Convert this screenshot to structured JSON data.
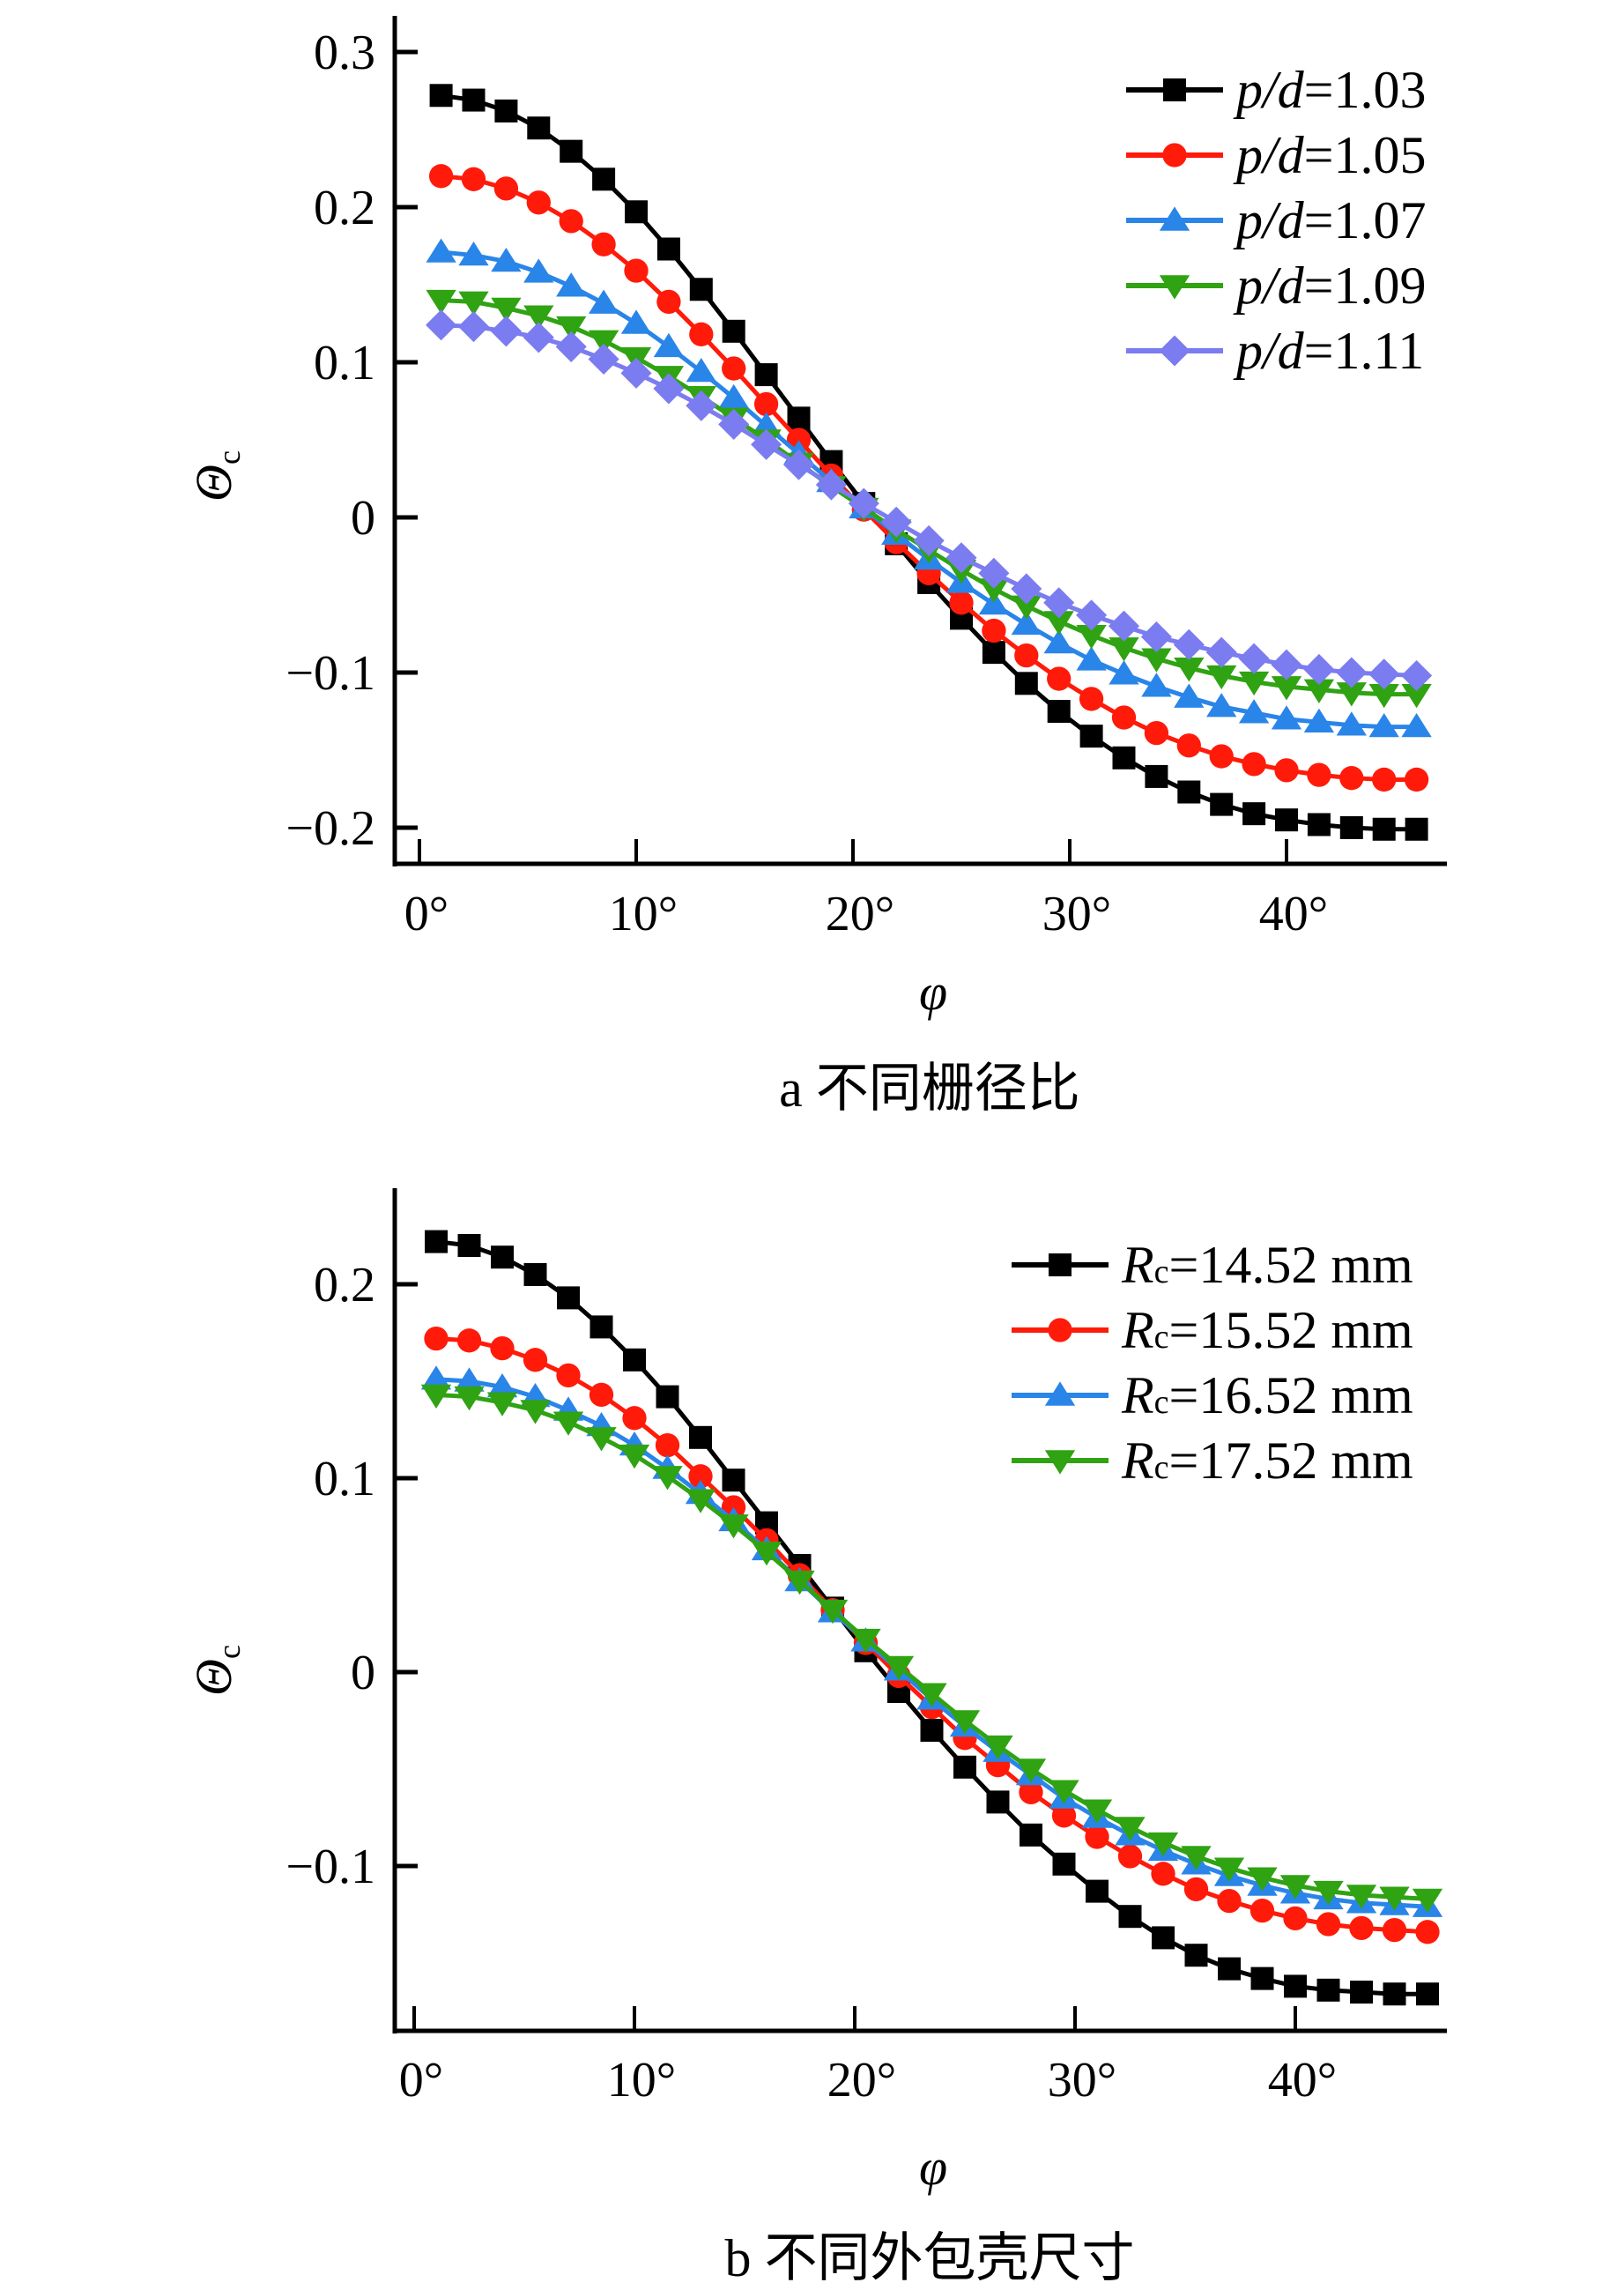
{
  "chart_data": [
    {
      "id": "a",
      "type": "line",
      "caption": "a  不同栅径比",
      "xlabel": "φ",
      "ylabel": "Θ",
      "ylabel_sub": "c",
      "xlim": [
        0,
        47
      ],
      "ylim": [
        -0.22,
        0.32
      ],
      "xticks": [
        0,
        10,
        20,
        30,
        40
      ],
      "xtick_labels": [
        "0°",
        "10°",
        "20°",
        "30°",
        "40°"
      ],
      "yticks": [
        0.3,
        0.2,
        0.1,
        0,
        -0.1,
        -0.2
      ],
      "ytick_labels": [
        "0.3",
        "0.2",
        "0.1",
        "0",
        "−0.1",
        "−0.2"
      ],
      "grid": false,
      "legend_position": "top-right",
      "x_start": 1.0,
      "x_step": 1.5,
      "n_points": 31,
      "series": [
        {
          "name_prefix_italic": "p/d",
          "name_suffix": "=1.03",
          "color": "#000000",
          "marker": "square",
          "values": [
            0.272,
            0.269,
            0.262,
            0.251,
            0.236,
            0.218,
            0.197,
            0.173,
            0.147,
            0.12,
            0.092,
            0.064,
            0.036,
            0.009,
            -0.017,
            -0.042,
            -0.065,
            -0.087,
            -0.107,
            -0.125,
            -0.141,
            -0.155,
            -0.167,
            -0.177,
            -0.185,
            -0.191,
            -0.195,
            -0.198,
            -0.2,
            -0.201,
            -0.201
          ]
        },
        {
          "name_prefix_italic": "p/d",
          "name_suffix": "=1.05",
          "color": "#ff1a0a",
          "marker": "circle",
          "values": [
            0.22,
            0.218,
            0.212,
            0.203,
            0.191,
            0.176,
            0.159,
            0.139,
            0.118,
            0.096,
            0.073,
            0.05,
            0.027,
            0.005,
            -0.016,
            -0.036,
            -0.055,
            -0.073,
            -0.089,
            -0.104,
            -0.117,
            -0.129,
            -0.139,
            -0.147,
            -0.154,
            -0.159,
            -0.163,
            -0.166,
            -0.168,
            -0.169,
            -0.169
          ]
        },
        {
          "name_prefix_italic": "p/d",
          "name_suffix": "=1.07",
          "color": "#2a85e8",
          "marker": "triangle-up",
          "values": [
            0.171,
            0.169,
            0.165,
            0.158,
            0.149,
            0.138,
            0.125,
            0.11,
            0.094,
            0.077,
            0.059,
            0.041,
            0.023,
            0.006,
            -0.011,
            -0.027,
            -0.042,
            -0.056,
            -0.069,
            -0.081,
            -0.092,
            -0.101,
            -0.109,
            -0.116,
            -0.122,
            -0.126,
            -0.13,
            -0.132,
            -0.134,
            -0.135,
            -0.135
          ]
        },
        {
          "name_prefix_italic": "p/d",
          "name_suffix": "=1.09",
          "color": "#2fa312",
          "marker": "triangle-down",
          "values": [
            0.14,
            0.139,
            0.135,
            0.13,
            0.123,
            0.114,
            0.103,
            0.091,
            0.078,
            0.064,
            0.05,
            0.035,
            0.02,
            0.006,
            -0.008,
            -0.021,
            -0.034,
            -0.046,
            -0.057,
            -0.067,
            -0.076,
            -0.084,
            -0.091,
            -0.097,
            -0.102,
            -0.106,
            -0.109,
            -0.111,
            -0.113,
            -0.114,
            -0.114
          ]
        },
        {
          "name_prefix_italic": "p/d",
          "name_suffix": "=1.11",
          "color": "#7b7cf0",
          "marker": "diamond",
          "values": [
            0.124,
            0.123,
            0.12,
            0.116,
            0.11,
            0.102,
            0.093,
            0.083,
            0.072,
            0.06,
            0.047,
            0.034,
            0.021,
            0.009,
            -0.003,
            -0.015,
            -0.026,
            -0.036,
            -0.046,
            -0.055,
            -0.063,
            -0.07,
            -0.077,
            -0.082,
            -0.087,
            -0.091,
            -0.095,
            -0.098,
            -0.1,
            -0.101,
            -0.102
          ]
        }
      ]
    },
    {
      "id": "b",
      "type": "line",
      "caption": "b  不同外包壳尺寸",
      "xlabel": "φ",
      "ylabel": "Θ",
      "ylabel_sub": "c",
      "xlim": [
        0,
        47
      ],
      "ylim": [
        -0.185,
        0.25
      ],
      "xticks": [
        0,
        10,
        20,
        30,
        40
      ],
      "xtick_labels": [
        "0°",
        "10°",
        "20°",
        "30°",
        "40°"
      ],
      "yticks": [
        0.2,
        0.1,
        0,
        -0.1
      ],
      "ytick_labels": [
        "0.2",
        "0.1",
        "0",
        "−0.1"
      ],
      "grid": false,
      "legend_position": "top-right",
      "x_start": 1.0,
      "x_step": 1.5,
      "n_points": 31,
      "series": [
        {
          "name_prefix_italic": "R",
          "name_sub": "c",
          "name_suffix": "=14.52 mm",
          "color": "#000000",
          "marker": "square",
          "values": [
            0.222,
            0.22,
            0.214,
            0.205,
            0.193,
            0.178,
            0.161,
            0.142,
            0.121,
            0.099,
            0.077,
            0.055,
            0.033,
            0.011,
            -0.01,
            -0.03,
            -0.049,
            -0.067,
            -0.084,
            -0.099,
            -0.113,
            -0.126,
            -0.137,
            -0.146,
            -0.153,
            -0.158,
            -0.162,
            -0.164,
            -0.165,
            -0.166,
            -0.166
          ]
        },
        {
          "name_prefix_italic": "R",
          "name_sub": "c",
          "name_suffix": "=15.52 mm",
          "color": "#ff1a0a",
          "marker": "circle",
          "values": [
            0.172,
            0.171,
            0.167,
            0.161,
            0.153,
            0.143,
            0.131,
            0.117,
            0.101,
            0.085,
            0.068,
            0.05,
            0.032,
            0.015,
            -0.002,
            -0.018,
            -0.034,
            -0.048,
            -0.062,
            -0.074,
            -0.085,
            -0.095,
            -0.104,
            -0.112,
            -0.118,
            -0.123,
            -0.127,
            -0.13,
            -0.132,
            -0.133,
            -0.134
          ]
        },
        {
          "name_prefix_italic": "R",
          "name_sub": "c",
          "name_suffix": "=16.52 mm",
          "color": "#2a85e8",
          "marker": "triangle-up",
          "values": [
            0.151,
            0.15,
            0.147,
            0.142,
            0.135,
            0.127,
            0.117,
            0.105,
            0.092,
            0.078,
            0.063,
            0.047,
            0.031,
            0.016,
            0.001,
            -0.014,
            -0.028,
            -0.041,
            -0.053,
            -0.065,
            -0.075,
            -0.084,
            -0.092,
            -0.099,
            -0.105,
            -0.11,
            -0.114,
            -0.117,
            -0.119,
            -0.12,
            -0.121
          ]
        },
        {
          "name_prefix_italic": "R",
          "name_sub": "c",
          "name_suffix": "=17.52 mm",
          "color": "#2fa312",
          "marker": "triangle-down",
          "values": [
            0.143,
            0.142,
            0.139,
            0.135,
            0.129,
            0.121,
            0.112,
            0.101,
            0.089,
            0.076,
            0.062,
            0.047,
            0.032,
            0.017,
            0.003,
            -0.011,
            -0.025,
            -0.038,
            -0.05,
            -0.061,
            -0.071,
            -0.08,
            -0.088,
            -0.095,
            -0.101,
            -0.106,
            -0.11,
            -0.113,
            -0.115,
            -0.116,
            -0.117
          ]
        }
      ]
    }
  ]
}
